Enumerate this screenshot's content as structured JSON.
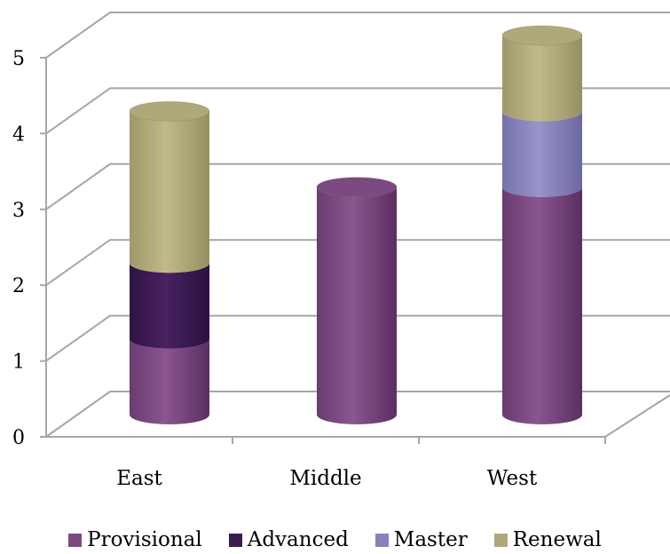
{
  "chart_data": {
    "type": "bar",
    "stacked": true,
    "style": "3d-cylinder",
    "categories": [
      "East",
      "Middle",
      "West"
    ],
    "series": [
      {
        "name": "Provisional",
        "values": [
          1,
          3,
          3
        ],
        "color": "#7B4A80"
      },
      {
        "name": "Advanced",
        "values": [
          1,
          0,
          0
        ],
        "color": "#3C1A52"
      },
      {
        "name": "Master",
        "values": [
          0,
          0,
          1
        ],
        "color": "#8582B9"
      },
      {
        "name": "Renewal",
        "values": [
          2,
          0,
          1
        ],
        "color": "#AFA97A"
      }
    ],
    "y_ticks": [
      "0",
      "1",
      "2",
      "3",
      "4",
      "5"
    ],
    "ylim": [
      0,
      5
    ],
    "grid": true,
    "legend_position": "bottom"
  }
}
